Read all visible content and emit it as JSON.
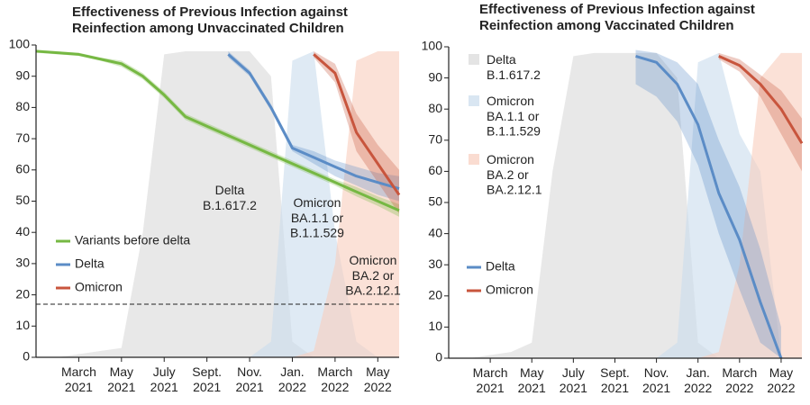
{
  "chart_data": [
    {
      "type": "line",
      "title": "Effectiveness of Previous Infection against\nReinfection among Unvaccinated Children",
      "x": [
        "2021-01",
        "2021-02",
        "2021-03",
        "2021-04",
        "2021-05",
        "2021-06",
        "2021-07",
        "2021-08",
        "2021-09",
        "2021-10",
        "2021-11",
        "2021-12",
        "2022-01",
        "2022-02",
        "2022-03",
        "2022-04",
        "2022-05",
        "2022-06"
      ],
      "xlim": [
        "2021-01",
        "2022-06"
      ],
      "xticks": [
        {
          "value": "2021-03",
          "label": "March\n2021"
        },
        {
          "value": "2021-05",
          "label": "May\n2021"
        },
        {
          "value": "2021-07",
          "label": "July\n2021"
        },
        {
          "value": "2021-09",
          "label": "Sept.\n2021"
        },
        {
          "value": "2021-11",
          "label": "Nov.\n2021"
        },
        {
          "value": "2022-01",
          "label": "Jan.\n2022"
        },
        {
          "value": "2022-03",
          "label": "March\n2022"
        },
        {
          "value": "2022-05",
          "label": "May\n2022"
        }
      ],
      "ylim": [
        0,
        100
      ],
      "yticks": [
        0,
        10,
        20,
        30,
        40,
        50,
        60,
        70,
        80,
        90,
        100
      ],
      "reference_line": 17,
      "legend": "lower left",
      "area_labels": "inline",
      "areas": [
        {
          "name": "Delta\nB.1.617.2",
          "color": "#d9d9d9",
          "values": [
            0,
            0,
            1,
            2,
            3,
            40,
            97,
            98,
            98,
            98,
            98,
            90,
            5,
            0,
            0,
            0,
            0,
            0
          ]
        },
        {
          "name": "Omicron\nBA.1.1 or\nB.1.1.529",
          "color": "#c9dced",
          "values": [
            0,
            0,
            0,
            0,
            0,
            0,
            0,
            0,
            0,
            0,
            0,
            5,
            95,
            98,
            40,
            5,
            0,
            0
          ]
        },
        {
          "name": "Omicron\nBA.2 or\nBA.2.12.1",
          "color": "#f8cdbd",
          "values": [
            0,
            0,
            0,
            0,
            0,
            0,
            0,
            0,
            0,
            0,
            0,
            0,
            0,
            2,
            30,
            95,
            98,
            98
          ]
        }
      ],
      "series": [
        {
          "name": "Variants before delta",
          "color": "#76b843",
          "values": [
            98,
            97.5,
            97,
            95.5,
            94,
            90,
            84,
            77,
            74,
            71,
            68,
            65,
            62,
            59,
            56,
            53,
            50,
            47
          ],
          "lower": [
            97.5,
            97,
            96.5,
            95,
            93,
            89,
            83,
            76,
            73,
            70,
            67,
            64,
            61,
            58,
            55,
            51.5,
            48.5,
            45
          ],
          "upper": [
            98.5,
            98,
            97.5,
            96,
            95,
            91,
            85,
            78,
            75,
            72,
            69,
            66,
            63,
            60,
            57,
            54.5,
            51.5,
            49
          ]
        },
        {
          "name": "Delta",
          "color": "#5b8cc6",
          "values": [
            null,
            null,
            null,
            null,
            null,
            null,
            null,
            null,
            null,
            97,
            91,
            80,
            67,
            64,
            61,
            58,
            56,
            54
          ],
          "lower": [
            null,
            null,
            null,
            null,
            null,
            null,
            null,
            null,
            null,
            96,
            90,
            79,
            66,
            62,
            58,
            55,
            52,
            50
          ],
          "upper": [
            null,
            null,
            null,
            null,
            null,
            null,
            null,
            null,
            null,
            98,
            92,
            81,
            68,
            66,
            63,
            61,
            59,
            58
          ]
        },
        {
          "name": "Omicron",
          "color": "#c8553d",
          "values": [
            null,
            null,
            null,
            null,
            null,
            null,
            null,
            null,
            null,
            null,
            null,
            null,
            null,
            97,
            91,
            72,
            62,
            52
          ],
          "lower": [
            null,
            null,
            null,
            null,
            null,
            null,
            null,
            null,
            null,
            null,
            null,
            null,
            null,
            96,
            88,
            66,
            56,
            46
          ],
          "upper": [
            null,
            null,
            null,
            null,
            null,
            null,
            null,
            null,
            null,
            null,
            null,
            null,
            null,
            98,
            94,
            78,
            68,
            60
          ]
        }
      ]
    },
    {
      "type": "line",
      "title": "Effectiveness of Previous Infection against\nReinfection among  Vaccinated Children",
      "x": [
        "2021-01",
        "2021-02",
        "2021-03",
        "2021-04",
        "2021-05",
        "2021-06",
        "2021-07",
        "2021-08",
        "2021-09",
        "2021-10",
        "2021-11",
        "2021-12",
        "2022-01",
        "2022-02",
        "2022-03",
        "2022-04",
        "2022-05",
        "2022-06"
      ],
      "xlim": [
        "2021-01",
        "2022-06"
      ],
      "xticks": [
        {
          "value": "2021-03",
          "label": "March\n2021"
        },
        {
          "value": "2021-05",
          "label": "May\n2021"
        },
        {
          "value": "2021-07",
          "label": "July\n2021"
        },
        {
          "value": "2021-09",
          "label": "Sept.\n2021"
        },
        {
          "value": "2021-11",
          "label": "Nov.\n2021"
        },
        {
          "value": "2022-01",
          "label": "Jan.\n2022"
        },
        {
          "value": "2022-03",
          "label": "March\n2022"
        },
        {
          "value": "2022-05",
          "label": "May\n2022"
        }
      ],
      "ylim": [
        0,
        100
      ],
      "yticks": [
        0,
        10,
        20,
        30,
        40,
        50,
        60,
        70,
        80,
        90,
        100
      ],
      "legend": "lower left",
      "area_labels": "legend",
      "areas": [
        {
          "name": "Delta\nB.1.617.2",
          "color": "#d9d9d9",
          "values": [
            0,
            0,
            1,
            2,
            5,
            60,
            97,
            98,
            98,
            98,
            98,
            90,
            5,
            0,
            0,
            0,
            0,
            0
          ]
        },
        {
          "name": "Omicron\nBA.1.1 or\nB.1.1.529",
          "color": "#c9dced",
          "values": [
            0,
            0,
            0,
            0,
            0,
            0,
            0,
            0,
            0,
            0,
            0,
            5,
            95,
            98,
            72,
            60,
            0,
            0
          ]
        },
        {
          "name": "Omicron\nBA.2 or\nBA.2.12.1",
          "color": "#f8cdbd",
          "values": [
            0,
            0,
            0,
            0,
            0,
            0,
            0,
            0,
            0,
            0,
            0,
            0,
            0,
            2,
            30,
            90,
            98,
            98
          ]
        }
      ],
      "series": [
        {
          "name": "Delta",
          "color": "#5b8cc6",
          "values": [
            null,
            null,
            null,
            null,
            null,
            null,
            null,
            null,
            null,
            97,
            95,
            88,
            75,
            53,
            38,
            18,
            0,
            null
          ],
          "lower": [
            null,
            null,
            null,
            null,
            null,
            null,
            null,
            null,
            null,
            88,
            84,
            76,
            62,
            40,
            22,
            5,
            0,
            null
          ],
          "upper": [
            null,
            null,
            null,
            null,
            null,
            null,
            null,
            null,
            null,
            99,
            98,
            95,
            88,
            70,
            55,
            35,
            10,
            null
          ]
        },
        {
          "name": "Omicron",
          "color": "#c8553d",
          "values": [
            null,
            null,
            null,
            null,
            null,
            null,
            null,
            null,
            null,
            null,
            null,
            null,
            null,
            97,
            94,
            88,
            80,
            69
          ],
          "lower": [
            null,
            null,
            null,
            null,
            null,
            null,
            null,
            null,
            null,
            null,
            null,
            null,
            null,
            96,
            92,
            84,
            72,
            60
          ],
          "upper": [
            null,
            null,
            null,
            null,
            null,
            null,
            null,
            null,
            null,
            null,
            null,
            null,
            null,
            98,
            96,
            91,
            86,
            77
          ]
        }
      ]
    }
  ]
}
